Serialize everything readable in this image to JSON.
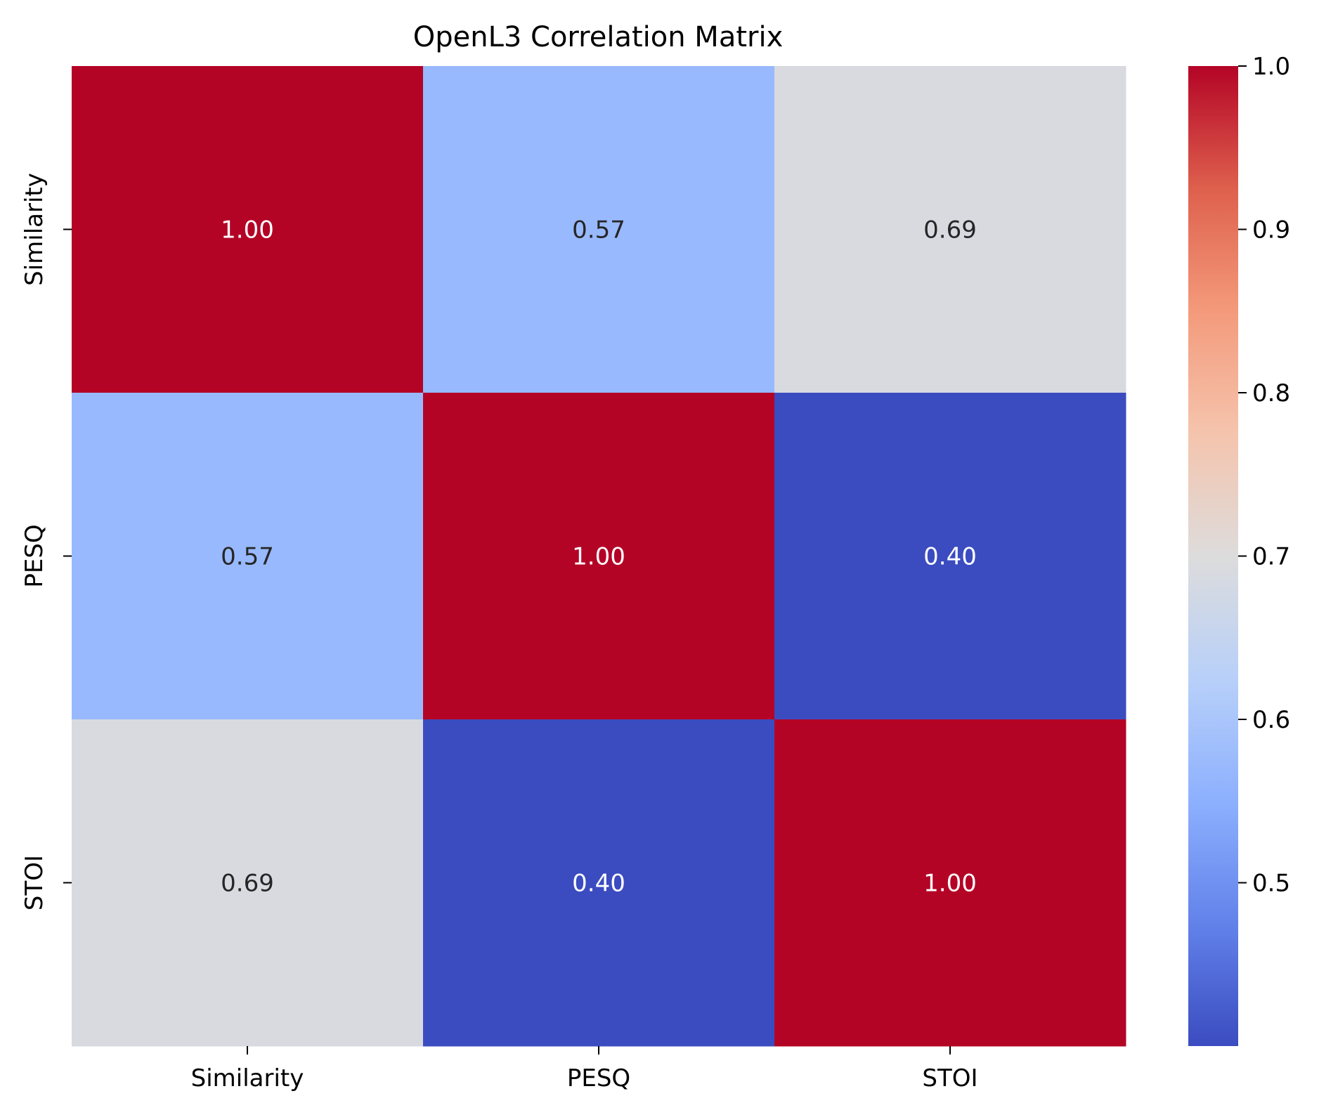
{
  "chart_data": {
    "type": "heatmap",
    "title": "OpenL3 Correlation Matrix",
    "xlabel": "",
    "ylabel": "",
    "x_categories": [
      "Similarity",
      "PESQ",
      "STOI"
    ],
    "y_categories": [
      "Similarity",
      "PESQ",
      "STOI"
    ],
    "values": [
      [
        1.0,
        0.57,
        0.69
      ],
      [
        0.57,
        1.0,
        0.4
      ],
      [
        0.69,
        0.4,
        1.0
      ]
    ],
    "cell_labels": [
      [
        "1.00",
        "0.57",
        "0.69"
      ],
      [
        "0.57",
        "1.00",
        "0.40"
      ],
      [
        "0.69",
        "0.40",
        "1.00"
      ]
    ],
    "colormap": "coolwarm",
    "colorbar": {
      "range": [
        0.4,
        1.0
      ],
      "ticks": [
        0.5,
        0.6,
        0.7,
        0.8,
        0.9,
        1.0
      ],
      "tick_labels": [
        "0.5",
        "0.6",
        "0.7",
        "0.8",
        "0.9",
        "1.0"
      ]
    },
    "colors": {
      "low": "#3b4cc0",
      "mid": "#dddcdc",
      "high": "#b40426",
      "text_dark": "#262626",
      "text_light": "#ffffff"
    }
  }
}
